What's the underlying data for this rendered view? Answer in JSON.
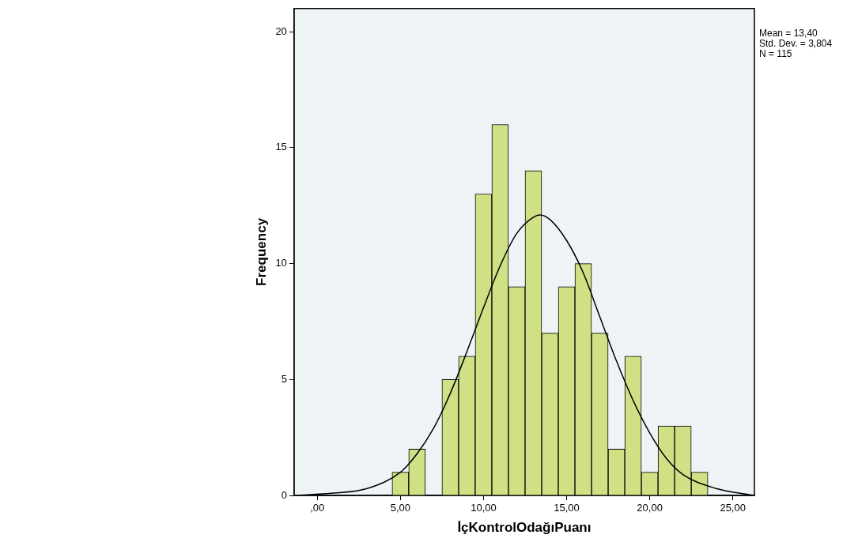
{
  "chart_data": {
    "type": "histogram",
    "xlabel": "İçKontrolOdağıPuanı",
    "ylabel": "Frequency",
    "bins": [
      4.5,
      5.5,
      6.5,
      7.5,
      8.5,
      9.5,
      10.5,
      11.5,
      12.5,
      13.5,
      14.5,
      15.5,
      16.5,
      17.5,
      18.5,
      19.5,
      20.5,
      21.5,
      22.5,
      23.5
    ],
    "values": [
      1,
      2,
      0,
      5,
      6,
      13,
      16,
      9,
      14,
      7,
      9,
      10,
      7,
      2,
      6,
      1,
      3,
      3,
      1
    ],
    "color": "#d0e085",
    "series": [
      {
        "type": "line",
        "color": "#000000",
        "x": [
          -1.4,
          1,
          3,
          5,
          6,
          7,
          8,
          9,
          10,
          11,
          12,
          13,
          13.4,
          14,
          15,
          16,
          17,
          18,
          19,
          20,
          21,
          22,
          24,
          26.3
        ],
        "values": [
          0.0,
          0.1,
          0.3,
          1.0,
          1.8,
          2.9,
          4.4,
          6.2,
          8.1,
          9.9,
          11.3,
          12.0,
          12.1,
          11.9,
          11.0,
          9.6,
          7.7,
          5.8,
          4.1,
          2.7,
          1.6,
          0.9,
          0.3,
          0.0
        ]
      }
    ],
    "xlim": [
      -1.4,
      26.3
    ],
    "xticks": [
      {
        "value": 0,
        "label": ",00"
      },
      {
        "value": 5,
        "label": "5,00"
      },
      {
        "value": 10,
        "label": "10,00"
      },
      {
        "value": 15,
        "label": "15,00"
      },
      {
        "value": 20,
        "label": "20,00"
      },
      {
        "value": 25,
        "label": "25,00"
      }
    ],
    "ylim": [
      0,
      21
    ],
    "yticks": [
      0,
      5,
      10,
      15,
      20
    ],
    "annotations": [
      "Mean = 13,40",
      "Std. Dev. = 3,804",
      "N = 115"
    ],
    "grid": false,
    "legend": false,
    "marker": "none",
    "line_style": "solid"
  }
}
